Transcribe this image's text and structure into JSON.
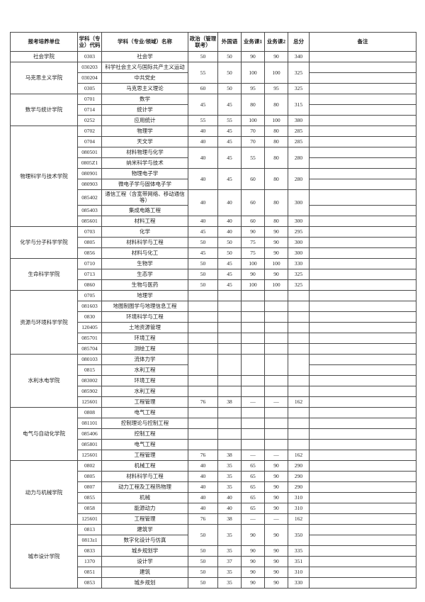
{
  "colors": {
    "background": "#ffffff",
    "border": "#4a4a4a",
    "text": "#1f1f1f"
  },
  "header": {
    "columns": [
      "报考培养单位",
      "学科（专业）代码",
      "学科（专业/领域）名称",
      "政治（管理联考）",
      "外国语",
      "业务课1",
      "业务课2",
      "总分",
      "备注"
    ]
  },
  "table": {
    "colleges": [
      {
        "name": "社会学院",
        "rows": [
          {
            "code": "0303",
            "major": "社会学",
            "score_span": 1,
            "scores": {
              "politics": "50",
              "foreign": "50",
              "course1": "90",
              "course2": "90",
              "total": "340"
            },
            "remark": ""
          }
        ]
      },
      {
        "name": "马克思主义学院",
        "rows": [
          {
            "code": "030203",
            "major": "科学社会主义与国际共产主义运动",
            "score_span": 2,
            "scores": {
              "politics": "55",
              "foreign": "50",
              "course1": "100",
              "course2": "100",
              "total": "325"
            },
            "remark": ""
          },
          {
            "code": "030204",
            "major": "中共党史",
            "scores": null,
            "remark": ""
          },
          {
            "code": "0305",
            "major": "马克思主义理论",
            "score_span": 1,
            "scores": {
              "politics": "60",
              "foreign": "50",
              "course1": "95",
              "course2": "95",
              "total": "325"
            },
            "remark": ""
          }
        ]
      },
      {
        "name": "数学与统计学院",
        "rows": [
          {
            "code": "0701",
            "major": "数学",
            "score_span": 2,
            "scores": {
              "politics": "45",
              "foreign": "45",
              "course1": "80",
              "course2": "80",
              "total": "315"
            },
            "remark": ""
          },
          {
            "code": "0714",
            "major": "统计学",
            "scores": null,
            "remark": ""
          },
          {
            "code": "0252",
            "major": "应用统计",
            "score_span": 1,
            "scores": {
              "politics": "55",
              "foreign": "55",
              "course1": "100",
              "course2": "100",
              "total": "380"
            },
            "remark": ""
          }
        ]
      },
      {
        "name": "物理科学与技术学院",
        "rows": [
          {
            "code": "0702",
            "major": "物理学",
            "score_span": 1,
            "scores": {
              "politics": "40",
              "foreign": "45",
              "course1": "70",
              "course2": "80",
              "total": "285"
            },
            "remark": ""
          },
          {
            "code": "0704",
            "major": "天文学",
            "score_span": 1,
            "scores": {
              "politics": "40",
              "foreign": "45",
              "course1": "70",
              "course2": "80",
              "total": "285"
            },
            "remark": ""
          },
          {
            "code": "080501",
            "major": "材料物理与化学",
            "score_span": 2,
            "scores": {
              "politics": "40",
              "foreign": "45",
              "course1": "55",
              "course2": "80",
              "total": "280"
            },
            "remark": ""
          },
          {
            "code": "0805Z1",
            "major": "纳米科学与技术",
            "scores": null,
            "remark": ""
          },
          {
            "code": "080901",
            "major": "物理电子学",
            "score_span": 2,
            "scores": {
              "politics": "40",
              "foreign": "45",
              "course1": "60",
              "course2": "80",
              "total": "280"
            },
            "remark": ""
          },
          {
            "code": "080903",
            "major": "微电子学与固体电子学",
            "scores": null,
            "remark": ""
          },
          {
            "code": "085402",
            "major": "通信工程（含宽带网络、移动通信等）",
            "score_span": 2,
            "scores": {
              "politics": "40",
              "foreign": "40",
              "course1": "60",
              "course2": "80",
              "total": "300"
            },
            "remark": ""
          },
          {
            "code": "085403",
            "major": "集成电路工程",
            "scores": null,
            "remark": ""
          },
          {
            "code": "085601",
            "major": "材料工程",
            "score_span": 1,
            "scores": {
              "politics": "40",
              "foreign": "40",
              "course1": "60",
              "course2": "80",
              "total": "300"
            },
            "remark": ""
          }
        ]
      },
      {
        "name": "化学与分子科学学院",
        "rows": [
          {
            "code": "0703",
            "major": "化学",
            "score_span": 1,
            "scores": {
              "politics": "45",
              "foreign": "40",
              "course1": "90",
              "course2": "90",
              "total": "295"
            },
            "remark": ""
          },
          {
            "code": "0805",
            "major": "材料科学与工程",
            "score_span": 1,
            "scores": {
              "politics": "50",
              "foreign": "50",
              "course1": "75",
              "course2": "90",
              "total": "300"
            },
            "remark": ""
          },
          {
            "code": "0856",
            "major": "材料与化工",
            "score_span": 1,
            "scores": {
              "politics": "45",
              "foreign": "50",
              "course1": "75",
              "course2": "90",
              "total": "300"
            },
            "remark": ""
          }
        ]
      },
      {
        "name": "生命科学学院",
        "rows": [
          {
            "code": "0710",
            "major": "生物学",
            "score_span": 1,
            "scores": {
              "politics": "50",
              "foreign": "45",
              "course1": "100",
              "course2": "100",
              "total": "330"
            },
            "remark": ""
          },
          {
            "code": "0713",
            "major": "生态学",
            "score_span": 1,
            "scores": {
              "politics": "50",
              "foreign": "45",
              "course1": "90",
              "course2": "90",
              "total": "325"
            },
            "remark": ""
          },
          {
            "code": "0860",
            "major": "生物与医药",
            "score_span": 1,
            "scores": {
              "politics": "50",
              "foreign": "45",
              "course1": "100",
              "course2": "100",
              "total": "325"
            },
            "remark": ""
          }
        ]
      },
      {
        "name": "资源与环境科学学院",
        "rows": [
          {
            "code": "0705",
            "major": "地理学",
            "score_span": 1,
            "scores": {
              "politics": "",
              "foreign": "",
              "course1": "",
              "course2": "",
              "total": ""
            },
            "remark": ""
          },
          {
            "code": "081603",
            "major": "地图制图学与地理信息工程",
            "score_span": 1,
            "scores": {
              "politics": "",
              "foreign": "",
              "course1": "",
              "course2": "",
              "total": ""
            },
            "remark": ""
          },
          {
            "code": "0830",
            "major": "环境科学与工程",
            "score_span": 1,
            "scores": {
              "politics": "",
              "foreign": "",
              "course1": "",
              "course2": "",
              "total": ""
            },
            "remark": ""
          },
          {
            "code": "120405",
            "major": "土地资源管理",
            "score_span": 1,
            "scores": {
              "politics": "",
              "foreign": "",
              "course1": "",
              "course2": "",
              "total": ""
            },
            "remark": ""
          },
          {
            "code": "085701",
            "major": "环境工程",
            "score_span": 1,
            "scores": {
              "politics": "",
              "foreign": "",
              "course1": "",
              "course2": "",
              "total": ""
            },
            "remark": ""
          },
          {
            "code": "085704",
            "major": "测绘工程",
            "score_span": 1,
            "scores": {
              "politics": "",
              "foreign": "",
              "course1": "",
              "course2": "",
              "total": ""
            },
            "remark": ""
          }
        ]
      },
      {
        "name": "水利水电学院",
        "rows": [
          {
            "code": "080103",
            "major": "流体力学",
            "score_span": 2,
            "scores": {
              "politics": "",
              "foreign": "",
              "course1": "",
              "course2": "",
              "total": ""
            },
            "remark": ""
          },
          {
            "code": "0815",
            "major": "水利工程",
            "scores": null,
            "remark": ""
          },
          {
            "code": "083002",
            "major": "环境工程",
            "score_span": 1,
            "scores": {
              "politics": "",
              "foreign": "",
              "course1": "",
              "course2": "",
              "total": ""
            },
            "remark": ""
          },
          {
            "code": "085902",
            "major": "水利工程",
            "score_span": 1,
            "scores": {
              "politics": "",
              "foreign": "",
              "course1": "",
              "course2": "",
              "total": ""
            },
            "remark": ""
          },
          {
            "code": "125601",
            "major": "工程管理",
            "score_span": 1,
            "scores": {
              "politics": "76",
              "foreign": "38",
              "course1": "—",
              "course2": "—",
              "total": "162"
            },
            "remark": ""
          }
        ]
      },
      {
        "name": "电气与自动化学院",
        "rows": [
          {
            "code": "0808",
            "major": "电气工程",
            "score_span": 1,
            "scores": {
              "politics": "",
              "foreign": "",
              "course1": "",
              "course2": "",
              "total": ""
            },
            "remark": ""
          },
          {
            "code": "081101",
            "major": "控制理论与控制工程",
            "score_span": 1,
            "scores": {
              "politics": "",
              "foreign": "",
              "course1": "",
              "course2": "",
              "total": ""
            },
            "remark": ""
          },
          {
            "code": "085406",
            "major": "控制工程",
            "score_span": 1,
            "scores": {
              "politics": "",
              "foreign": "",
              "course1": "",
              "course2": "",
              "total": ""
            },
            "remark": ""
          },
          {
            "code": "085801",
            "major": "电气工程",
            "score_span": 1,
            "scores": {
              "politics": "",
              "foreign": "",
              "course1": "",
              "course2": "",
              "total": ""
            },
            "remark": ""
          },
          {
            "code": "125601",
            "major": "工程管理",
            "score_span": 1,
            "scores": {
              "politics": "76",
              "foreign": "38",
              "course1": "—",
              "course2": "—",
              "total": "162"
            },
            "remark": ""
          }
        ]
      },
      {
        "name": "动力与机械学院",
        "rows": [
          {
            "code": "0802",
            "major": "机械工程",
            "score_span": 1,
            "scores": {
              "politics": "40",
              "foreign": "35",
              "course1": "65",
              "course2": "90",
              "total": "290"
            },
            "remark": ""
          },
          {
            "code": "0805",
            "major": "材料科学与工程",
            "score_span": 1,
            "scores": {
              "politics": "40",
              "foreign": "35",
              "course1": "65",
              "course2": "90",
              "total": "290"
            },
            "remark": ""
          },
          {
            "code": "0807",
            "major": "动力工程及工程热物理",
            "score_span": 1,
            "scores": {
              "politics": "40",
              "foreign": "35",
              "course1": "65",
              "course2": "90",
              "total": "290"
            },
            "remark": ""
          },
          {
            "code": "0855",
            "major": "机械",
            "score_span": 1,
            "scores": {
              "politics": "40",
              "foreign": "40",
              "course1": "65",
              "course2": "90",
              "total": "310"
            },
            "remark": ""
          },
          {
            "code": "0858",
            "major": "能源动力",
            "score_span": 1,
            "scores": {
              "politics": "40",
              "foreign": "40",
              "course1": "65",
              "course2": "90",
              "total": "310"
            },
            "remark": ""
          },
          {
            "code": "125601",
            "major": "工程管理",
            "score_span": 1,
            "scores": {
              "politics": "76",
              "foreign": "38",
              "course1": "—",
              "course2": "—",
              "total": "162"
            },
            "remark": ""
          }
        ]
      },
      {
        "name": "城市设计学院",
        "rows": [
          {
            "code": "0813",
            "major": "建筑学",
            "score_span": 2,
            "scores": {
              "politics": "50",
              "foreign": "35",
              "course1": "90",
              "course2": "90",
              "total": "350"
            },
            "remark": ""
          },
          {
            "code": "0813z1",
            "major": "数字化设计与仿真",
            "scores": null,
            "remark": ""
          },
          {
            "code": "0833",
            "major": "城乡规划学",
            "score_span": 1,
            "scores": {
              "politics": "50",
              "foreign": "35",
              "course1": "90",
              "course2": "90",
              "total": "335"
            },
            "remark": ""
          },
          {
            "code": "1370",
            "major": "设计学",
            "score_span": 1,
            "scores": {
              "politics": "50",
              "foreign": "37",
              "course1": "90",
              "course2": "90",
              "total": "351"
            },
            "remark": ""
          },
          {
            "code": "0851",
            "major": "建筑",
            "score_span": 1,
            "scores": {
              "politics": "50",
              "foreign": "35",
              "course1": "90",
              "course2": "90",
              "total": "310"
            },
            "remark": ""
          },
          {
            "code": "0853",
            "major": "城乡规划",
            "score_span": 1,
            "scores": {
              "politics": "50",
              "foreign": "35",
              "course1": "90",
              "course2": "90",
              "total": "330"
            },
            "remark": ""
          }
        ]
      }
    ]
  }
}
